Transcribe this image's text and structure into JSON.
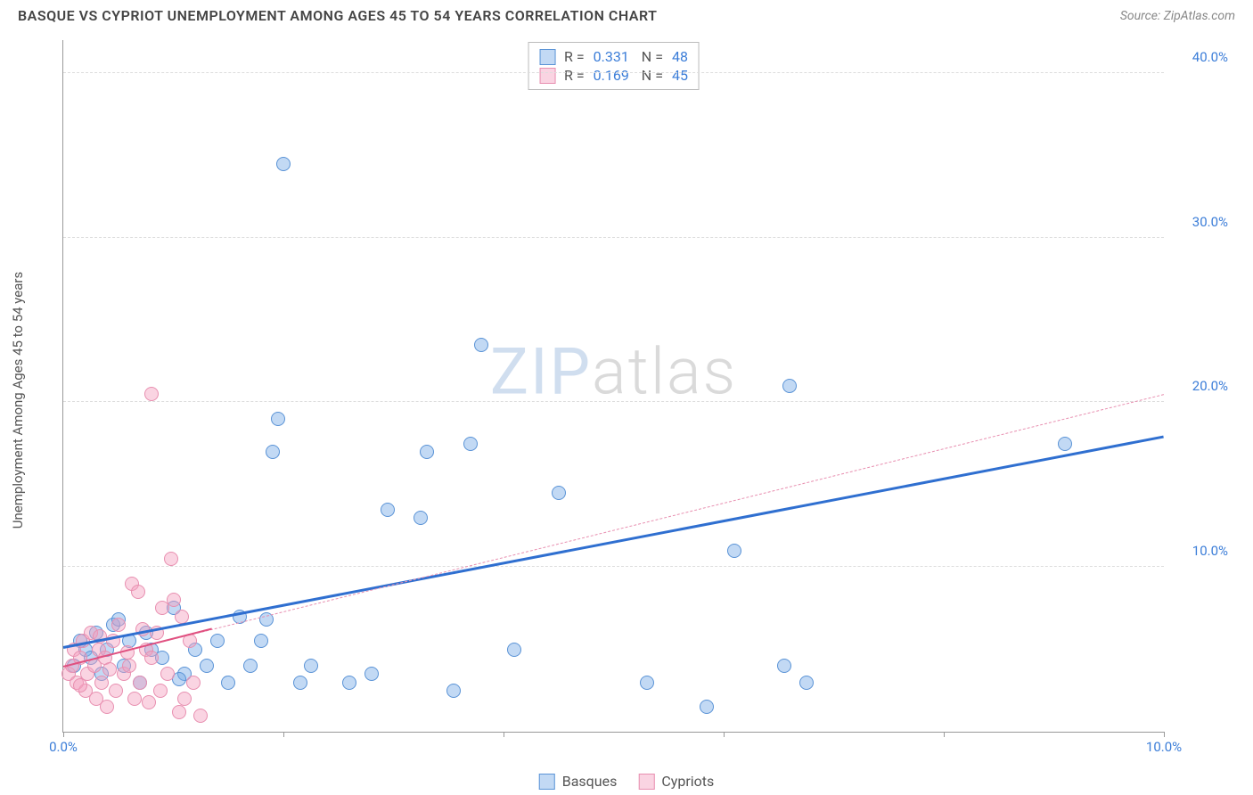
{
  "header": {
    "title": "BASQUE VS CYPRIOT UNEMPLOYMENT AMONG AGES 45 TO 54 YEARS CORRELATION CHART",
    "source_label": "Source:",
    "source_name": "ZipAtlas.com"
  },
  "watermark": {
    "part1": "ZIP",
    "part2": "atlas"
  },
  "chart": {
    "type": "scatter",
    "y_axis_label": "Unemployment Among Ages 45 to 54 years",
    "xlim": [
      0,
      10
    ],
    "ylim": [
      0,
      42
    ],
    "x_ticks": [
      0,
      2,
      4,
      6,
      8,
      10
    ],
    "x_tick_labels": [
      "0.0%",
      "",
      "",
      "",
      "",
      "10.0%"
    ],
    "y_ticks": [
      10,
      20,
      30,
      40
    ],
    "y_tick_labels": [
      "10.0%",
      "20.0%",
      "30.0%",
      "40.0%"
    ],
    "grid_color": "#dddddd",
    "background_color": "#ffffff",
    "marker_radius": 8,
    "series": [
      {
        "name": "Basques",
        "fill": "rgba(120,170,230,0.45)",
        "stroke": "#5a93d6",
        "trend": {
          "x1": 0,
          "y1": 5.2,
          "x2": 10,
          "y2": 18.0,
          "color": "#2f6fd0",
          "width": 3,
          "dash": "solid"
        },
        "R": "0.331",
        "N": "48",
        "points": [
          [
            0.2,
            5.0
          ],
          [
            0.15,
            5.5
          ],
          [
            0.25,
            4.5
          ],
          [
            0.3,
            6.0
          ],
          [
            0.1,
            4.0
          ],
          [
            0.4,
            5.0
          ],
          [
            0.35,
            3.5
          ],
          [
            0.45,
            6.5
          ],
          [
            0.55,
            4.0
          ],
          [
            0.6,
            5.5
          ],
          [
            0.7,
            3.0
          ],
          [
            0.75,
            6.0
          ],
          [
            0.8,
            5.0
          ],
          [
            0.9,
            4.5
          ],
          [
            1.0,
            7.5
          ],
          [
            1.1,
            3.5
          ],
          [
            1.2,
            5.0
          ],
          [
            1.3,
            4.0
          ],
          [
            1.4,
            5.5
          ],
          [
            1.5,
            3.0
          ],
          [
            1.6,
            7.0
          ],
          [
            1.7,
            4.0
          ],
          [
            1.8,
            5.5
          ],
          [
            1.85,
            6.8
          ],
          [
            1.9,
            17.0
          ],
          [
            1.95,
            19.0
          ],
          [
            2.15,
            3.0
          ],
          [
            2.25,
            4.0
          ],
          [
            2.6,
            3.0
          ],
          [
            2.8,
            3.5
          ],
          [
            2.95,
            13.5
          ],
          [
            2.0,
            34.5
          ],
          [
            3.25,
            13.0
          ],
          [
            3.3,
            17.0
          ],
          [
            3.55,
            2.5
          ],
          [
            3.7,
            17.5
          ],
          [
            3.8,
            23.5
          ],
          [
            4.1,
            5.0
          ],
          [
            4.5,
            14.5
          ],
          [
            5.3,
            3.0
          ],
          [
            5.85,
            1.5
          ],
          [
            6.1,
            11.0
          ],
          [
            6.55,
            4.0
          ],
          [
            6.6,
            21.0
          ],
          [
            6.75,
            3.0
          ],
          [
            9.1,
            17.5
          ],
          [
            1.05,
            3.2
          ],
          [
            0.5,
            6.8
          ]
        ]
      },
      {
        "name": "Cypriots",
        "fill": "rgba(245,160,190,0.45)",
        "stroke": "#e88fb0",
        "trend": {
          "x1": 0,
          "y1": 4.0,
          "x2": 10,
          "y2": 20.5,
          "color": "#e88fb0",
          "width": 1.5,
          "dash": "dashed"
        },
        "trend_solid": {
          "x1": 0,
          "y1": 4.0,
          "x2": 1.35,
          "y2": 6.3,
          "color": "#e05080",
          "width": 2.5
        },
        "R": "0.169",
        "N": "45",
        "points": [
          [
            0.05,
            3.5
          ],
          [
            0.08,
            4.0
          ],
          [
            0.1,
            5.0
          ],
          [
            0.12,
            3.0
          ],
          [
            0.15,
            4.5
          ],
          [
            0.18,
            5.5
          ],
          [
            0.2,
            2.5
          ],
          [
            0.22,
            3.5
          ],
          [
            0.25,
            6.0
          ],
          [
            0.28,
            4.0
          ],
          [
            0.3,
            2.0
          ],
          [
            0.32,
            5.0
          ],
          [
            0.35,
            3.0
          ],
          [
            0.38,
            4.5
          ],
          [
            0.4,
            1.5
          ],
          [
            0.45,
            5.5
          ],
          [
            0.48,
            2.5
          ],
          [
            0.5,
            6.5
          ],
          [
            0.55,
            3.5
          ],
          [
            0.6,
            4.0
          ],
          [
            0.62,
            9.0
          ],
          [
            0.65,
            2.0
          ],
          [
            0.68,
            8.5
          ],
          [
            0.7,
            3.0
          ],
          [
            0.75,
            5.0
          ],
          [
            0.78,
            1.8
          ],
          [
            0.8,
            4.5
          ],
          [
            0.85,
            6.0
          ],
          [
            0.88,
            2.5
          ],
          [
            0.9,
            7.5
          ],
          [
            0.95,
            3.5
          ],
          [
            0.98,
            10.5
          ],
          [
            1.0,
            8.0
          ],
          [
            1.05,
            1.2
          ],
          [
            1.08,
            7.0
          ],
          [
            1.1,
            2.0
          ],
          [
            1.15,
            5.5
          ],
          [
            1.18,
            3.0
          ],
          [
            1.25,
            1.0
          ],
          [
            0.8,
            20.5
          ],
          [
            0.42,
            3.8
          ],
          [
            0.58,
            4.8
          ],
          [
            0.15,
            2.8
          ],
          [
            0.33,
            5.8
          ],
          [
            0.72,
            6.2
          ]
        ]
      }
    ]
  },
  "legend": {
    "series1_label": "Basques",
    "series2_label": "Cypriots"
  }
}
